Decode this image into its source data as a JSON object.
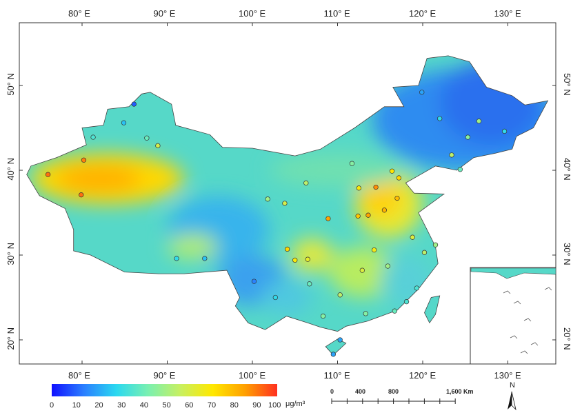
{
  "map_title": "",
  "axes": {
    "lon_labels_top": [
      "80° E",
      "90° E",
      "100° E",
      "110° E",
      "120° E",
      "130° E"
    ],
    "lon_labels_bottom": [
      "80° E",
      "90° E",
      "100° E",
      "110° E",
      "120° E",
      "130° E"
    ],
    "lat_labels_left": [
      "50° N",
      "40° N",
      "30° N",
      "20° N"
    ],
    "lat_labels_right": [
      "50° N",
      "40° N",
      "30° N",
      "20° N"
    ]
  },
  "legend": {
    "ticks": [
      "0",
      "10",
      "20",
      "30",
      "40",
      "50",
      "60",
      "70",
      "80",
      "90",
      "100"
    ],
    "unit": "μg/m³",
    "colors": [
      "#1010ff",
      "#2a7fff",
      "#2ad8f0",
      "#7af0b0",
      "#c8f060",
      "#ffe800",
      "#ffa000",
      "#ff3020"
    ]
  },
  "scale_bar": {
    "labels": [
      "0",
      "400",
      "800",
      "1,600 Km"
    ]
  },
  "north_arrow": {
    "label": "N"
  },
  "stations": [
    {
      "lon": 76.0,
      "lat": 39.5,
      "v": 92
    },
    {
      "lon": 80.2,
      "lat": 41.2,
      "v": 90
    },
    {
      "lon": 79.9,
      "lat": 37.1,
      "v": 92
    },
    {
      "lon": 88.9,
      "lat": 42.9,
      "v": 60
    },
    {
      "lon": 87.6,
      "lat": 43.8,
      "v": 40
    },
    {
      "lon": 84.9,
      "lat": 45.6,
      "v": 25
    },
    {
      "lon": 81.3,
      "lat": 43.9,
      "v": 35
    },
    {
      "lon": 86.1,
      "lat": 47.8,
      "v": 10
    },
    {
      "lon": 91.1,
      "lat": 29.6,
      "v": 30
    },
    {
      "lon": 94.4,
      "lat": 29.6,
      "v": 25
    },
    {
      "lon": 101.8,
      "lat": 36.6,
      "v": 50
    },
    {
      "lon": 103.8,
      "lat": 36.1,
      "v": 60
    },
    {
      "lon": 104.1,
      "lat": 30.7,
      "v": 75
    },
    {
      "lon": 106.5,
      "lat": 29.5,
      "v": 65
    },
    {
      "lon": 108.9,
      "lat": 34.3,
      "v": 85
    },
    {
      "lon": 112.5,
      "lat": 37.9,
      "v": 70
    },
    {
      "lon": 114.5,
      "lat": 38.0,
      "v": 88
    },
    {
      "lon": 116.4,
      "lat": 39.9,
      "v": 72
    },
    {
      "lon": 117.2,
      "lat": 39.1,
      "v": 75
    },
    {
      "lon": 113.6,
      "lat": 34.7,
      "v": 85
    },
    {
      "lon": 117.0,
      "lat": 36.7,
      "v": 80
    },
    {
      "lon": 118.8,
      "lat": 32.1,
      "v": 62
    },
    {
      "lon": 121.5,
      "lat": 31.2,
      "v": 50
    },
    {
      "lon": 120.2,
      "lat": 30.3,
      "v": 55
    },
    {
      "lon": 114.3,
      "lat": 30.6,
      "v": 68
    },
    {
      "lon": 112.9,
      "lat": 28.2,
      "v": 62
    },
    {
      "lon": 115.9,
      "lat": 28.7,
      "v": 50
    },
    {
      "lon": 119.3,
      "lat": 26.1,
      "v": 35
    },
    {
      "lon": 113.3,
      "lat": 23.1,
      "v": 45
    },
    {
      "lon": 110.3,
      "lat": 25.3,
      "v": 55
    },
    {
      "lon": 108.3,
      "lat": 22.8,
      "v": 45
    },
    {
      "lon": 102.7,
      "lat": 25.0,
      "v": 30
    },
    {
      "lon": 106.7,
      "lat": 26.6,
      "v": 40
    },
    {
      "lon": 110.3,
      "lat": 20.0,
      "v": 20
    },
    {
      "lon": 109.5,
      "lat": 18.3,
      "v": 20
    },
    {
      "lon": 123.4,
      "lat": 41.8,
      "v": 55
    },
    {
      "lon": 125.3,
      "lat": 43.9,
      "v": 45
    },
    {
      "lon": 126.6,
      "lat": 45.8,
      "v": 50
    },
    {
      "lon": 122.0,
      "lat": 46.1,
      "v": 30
    },
    {
      "lon": 111.7,
      "lat": 40.8,
      "v": 45
    },
    {
      "lon": 106.3,
      "lat": 38.5,
      "v": 55
    },
    {
      "lon": 119.9,
      "lat": 49.2,
      "v": 20
    },
    {
      "lon": 129.6,
      "lat": 44.6,
      "v": 30
    },
    {
      "lon": 124.4,
      "lat": 40.1,
      "v": 40
    },
    {
      "lon": 115.5,
      "lat": 35.3,
      "v": 82
    },
    {
      "lon": 112.4,
      "lat": 34.6,
      "v": 78
    },
    {
      "lon": 105.0,
      "lat": 29.4,
      "v": 70
    },
    {
      "lon": 100.2,
      "lat": 26.9,
      "v": 15
    },
    {
      "lon": 116.7,
      "lat": 23.4,
      "v": 40
    },
    {
      "lon": 118.1,
      "lat": 24.5,
      "v": 35
    }
  ]
}
